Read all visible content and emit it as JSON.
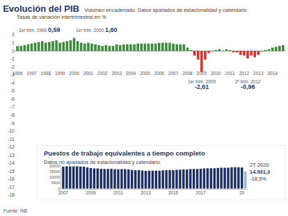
{
  "source": "Fuente: INE",
  "chart_data": [
    {
      "type": "bar",
      "title": "Evolución del PIB",
      "subtitle": "Volumen encadenado. Datos ajustados de estacionalidad y calendario",
      "y_label": "Tasas de variación intertrimestral en %",
      "categories": [
        "1996",
        null,
        null,
        null,
        "1997",
        null,
        null,
        null,
        "1998",
        null,
        null,
        null,
        "1999",
        null,
        null,
        null,
        "2000",
        null,
        null,
        null,
        "2001",
        null,
        null,
        null,
        "2002",
        null,
        null,
        null,
        "2003",
        null,
        null,
        null,
        "2004",
        null,
        null,
        null,
        "2005",
        null,
        null,
        null,
        "2006",
        null,
        null,
        null,
        "2007",
        null,
        null,
        null,
        "2008",
        null,
        null,
        null,
        "2009",
        null,
        null,
        null,
        "2010",
        null,
        null,
        null,
        "2011",
        null,
        null,
        null,
        "2012",
        null,
        null,
        null,
        "2013",
        null,
        null,
        null,
        "2014",
        null,
        null,
        null
      ],
      "values": [
        0.59,
        0.6,
        0.7,
        0.8,
        0.9,
        1.0,
        1.1,
        1.2,
        1.0,
        1.1,
        1.2,
        1.3,
        1.0,
        1.1,
        1.2,
        1.3,
        1.6,
        1.2,
        1.0,
        0.9,
        1.0,
        0.9,
        0.8,
        0.7,
        0.6,
        0.7,
        0.6,
        0.6,
        0.8,
        0.7,
        0.8,
        0.8,
        0.8,
        0.8,
        0.9,
        0.9,
        0.9,
        0.9,
        0.9,
        0.9,
        1.0,
        1.0,
        1.0,
        1.0,
        0.9,
        0.8,
        0.8,
        0.8,
        0.4,
        0.1,
        -0.6,
        -1.1,
        -2.61,
        -1.1,
        -0.3,
        -0.1,
        0.1,
        0.2,
        0.05,
        0.2,
        0.1,
        -0.2,
        -0.2,
        -0.5,
        -0.6,
        -0.96,
        -0.6,
        -0.8,
        -0.5,
        -0.1,
        0.1,
        0.2,
        0.4,
        0.5,
        0.6,
        0.7
      ],
      "colors": [
        "#3a8a3a",
        "#3a8a3a",
        "#3a8a3a",
        "#3a8a3a",
        "#3a8a3a",
        "#3a8a3a",
        "#3a8a3a",
        "#3a8a3a",
        "#3a8a3a",
        "#3a8a3a",
        "#3a8a3a",
        "#3a8a3a",
        "#3a8a3a",
        "#3a8a3a",
        "#3a8a3a",
        "#3a8a3a",
        "#3a8a3a",
        "#3a8a3a",
        "#3a8a3a",
        "#3a8a3a",
        "#3a8a3a",
        "#3a8a3a",
        "#3a8a3a",
        "#3a8a3a",
        "#3a8a3a",
        "#3a8a3a",
        "#3a8a3a",
        "#3a8a3a",
        "#3a8a3a",
        "#3a8a3a",
        "#3a8a3a",
        "#3a8a3a",
        "#3a8a3a",
        "#3a8a3a",
        "#3a8a3a",
        "#3a8a3a",
        "#3a8a3a",
        "#3a8a3a",
        "#3a8a3a",
        "#3a8a3a",
        "#3a8a3a",
        "#3a8a3a",
        "#3a8a3a",
        "#3a8a3a",
        "#3a8a3a",
        "#3a8a3a",
        "#3a8a3a",
        "#3a8a3a",
        "#3a8a3a",
        "#3a8a3a",
        "#d9302c",
        "#d9302c",
        "#d9302c",
        "#d9302c",
        "#d9302c",
        "#d9302c",
        "#3a8a3a",
        "#3a8a3a",
        "#3a8a3a",
        "#3a8a3a",
        "#3a8a3a",
        "#d9302c",
        "#d9302c",
        "#d9302c",
        "#d9302c",
        "#d9302c",
        "#d9302c",
        "#d9302c",
        "#d9302c",
        "#d9302c",
        "#3a8a3a",
        "#3a8a3a",
        "#3a8a3a",
        "#3a8a3a",
        "#3a8a3a",
        "#3a8a3a"
      ],
      "ylim": [
        -18,
        2
      ],
      "yticks": [
        2,
        1,
        0,
        -1,
        -2,
        -3,
        -4,
        -5,
        -6,
        -7,
        -8,
        -9,
        -10,
        -11,
        -12,
        -13,
        -14,
        -15,
        -16,
        -17,
        -18
      ],
      "grid": false,
      "annotations": [
        {
          "index": 0,
          "text": [
            "1er trim. 1996",
            "0,59"
          ]
        },
        {
          "index": 16,
          "text": [
            "1er trim. 2000",
            "1,60"
          ]
        },
        {
          "index": 52,
          "text": [
            "1er trim. 2009",
            "-2,61"
          ]
        },
        {
          "index": 65,
          "text": [
            "2º trim. 2012",
            "-0,96"
          ]
        }
      ]
    },
    {
      "type": "bar",
      "title": "Puestos de trabajo equivalentes a tiempo completo",
      "subtitle": "Datos no ajustados de estacionalidad y calendario",
      "categories": [
        "2007",
        null,
        null,
        null,
        null,
        null,
        null,
        null,
        "2009",
        null,
        null,
        null,
        null,
        null,
        null,
        null,
        "2011",
        null,
        null,
        null,
        null,
        null,
        null,
        null,
        "2013",
        null,
        null,
        null,
        null,
        null,
        null,
        null,
        "2015",
        null,
        null,
        null,
        null,
        null,
        null,
        null,
        "2017",
        null,
        null,
        null,
        null,
        null,
        null,
        null,
        null,
        null,
        null,
        null,
        "20",
        null
      ],
      "values": [
        19300,
        19500,
        19600,
        19600,
        19500,
        19400,
        19200,
        18700,
        18100,
        17800,
        17700,
        17500,
        17300,
        17300,
        17400,
        17200,
        17000,
        17100,
        17100,
        16800,
        16400,
        16200,
        16200,
        15900,
        15600,
        15700,
        15800,
        15800,
        15700,
        16000,
        16200,
        16200,
        16200,
        16500,
        16700,
        16800,
        16800,
        17100,
        17300,
        17300,
        17400,
        17700,
        17900,
        17900,
        17900,
        18200,
        18400,
        18400,
        18300,
        18600,
        18800,
        18800,
        18500,
        14931.3
      ],
      "colors": [
        "#1c2f63",
        "#1c2f63",
        "#1c2f63",
        "#1c2f63",
        "#1c2f63",
        "#1c2f63",
        "#1c2f63",
        "#1c2f63",
        "#1c2f63",
        "#1c2f63",
        "#1c2f63",
        "#1c2f63",
        "#1c2f63",
        "#1c2f63",
        "#1c2f63",
        "#1c2f63",
        "#1c2f63",
        "#1c2f63",
        "#1c2f63",
        "#1c2f63",
        "#1c2f63",
        "#1c2f63",
        "#1c2f63",
        "#1c2f63",
        "#1c2f63",
        "#1c2f63",
        "#1c2f63",
        "#1c2f63",
        "#1c2f63",
        "#1c2f63",
        "#1c2f63",
        "#1c2f63",
        "#1c2f63",
        "#1c2f63",
        "#1c2f63",
        "#1c2f63",
        "#1c2f63",
        "#1c2f63",
        "#1c2f63",
        "#1c2f63",
        "#1c2f63",
        "#1c2f63",
        "#1c2f63",
        "#1c2f63",
        "#1c2f63",
        "#1c2f63",
        "#1c2f63",
        "#1c2f63",
        "#1c2f63",
        "#1c2f63",
        "#1c2f63",
        "#1c2f63",
        "#1c2f63",
        "#8fbce6"
      ],
      "ylim": [
        0,
        21000
      ],
      "yticks": [
        0,
        5000,
        10000,
        15000,
        20000
      ],
      "grid": false,
      "annotations": [
        {
          "index": 53,
          "text": [
            "2T 2020",
            "14.931,3",
            "-18,5%"
          ]
        }
      ]
    }
  ]
}
